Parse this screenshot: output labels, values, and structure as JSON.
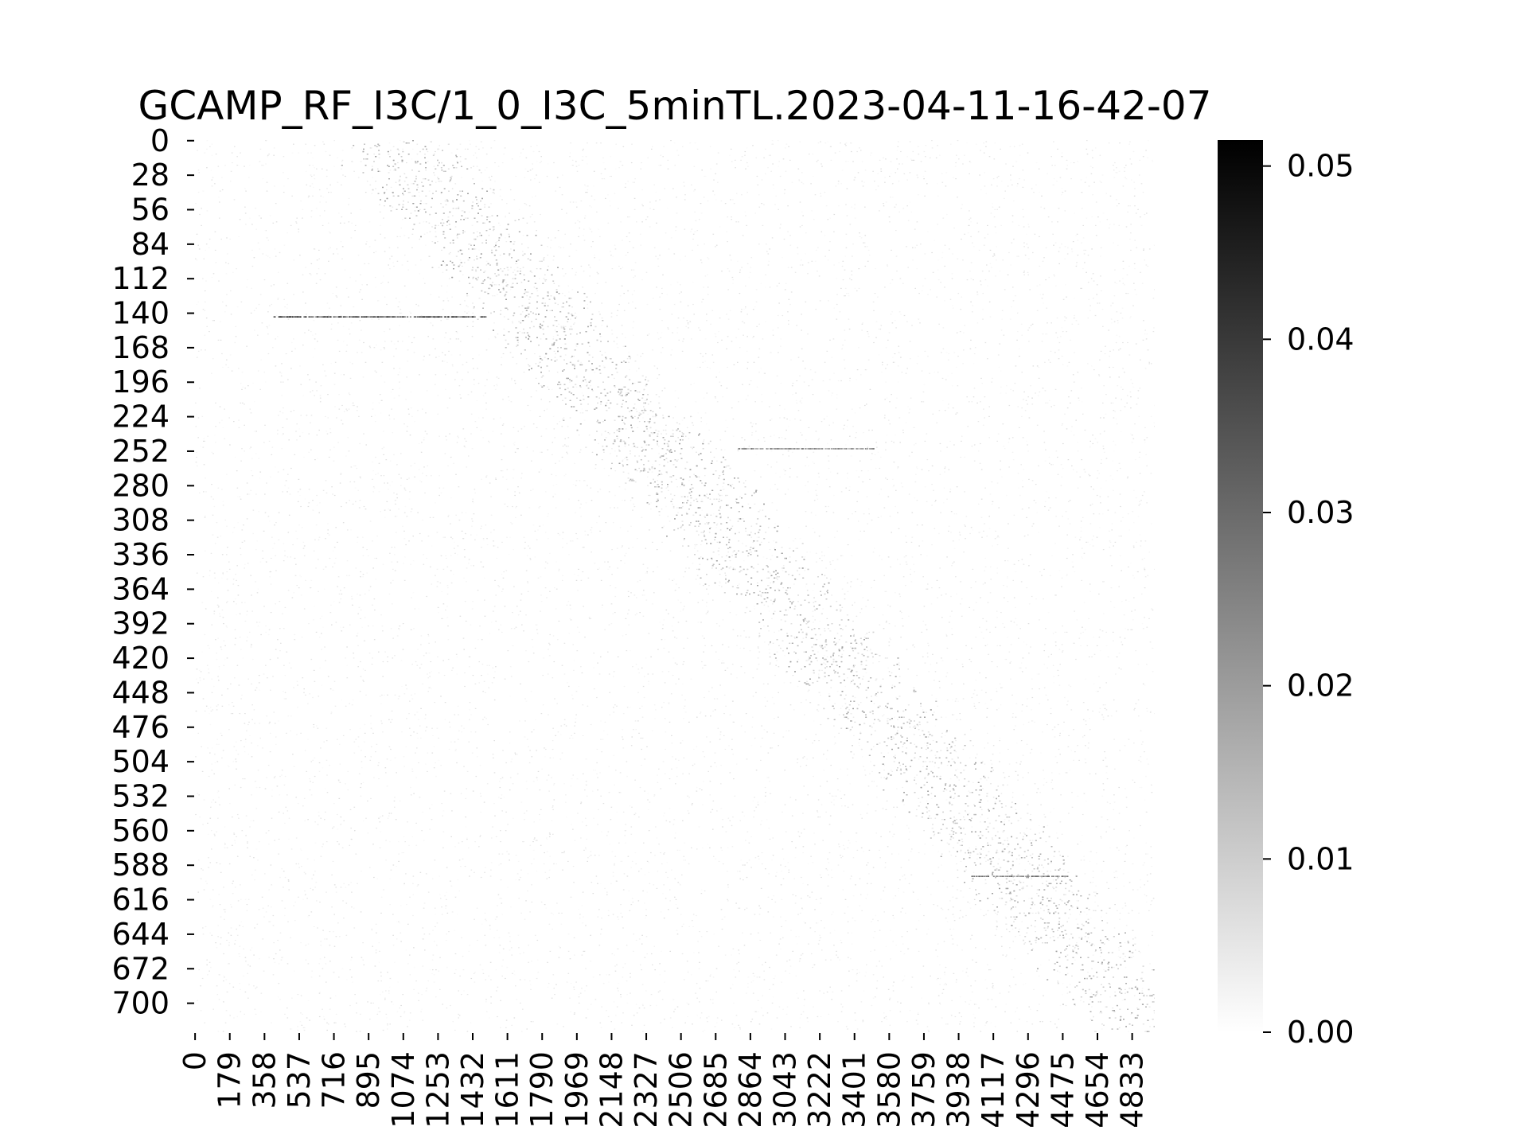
{
  "chart_data": {
    "type": "heatmap",
    "title": "GCAMP_RF_I3C/1_0_I3C_5minTL.2023-04-11-16-42-07",
    "xlabel": "",
    "ylabel": "",
    "colormap": "Greys",
    "rows": 724,
    "cols": 4950,
    "x_ticks": [
      0,
      179,
      358,
      537,
      716,
      895,
      1074,
      1253,
      1432,
      1611,
      1790,
      1969,
      2148,
      2327,
      2506,
      2685,
      2864,
      3043,
      3222,
      3401,
      3580,
      3759,
      3938,
      4117,
      4296,
      4475,
      4654,
      4833
    ],
    "y_ticks": [
      0,
      28,
      56,
      84,
      112,
      140,
      168,
      196,
      224,
      252,
      280,
      308,
      336,
      364,
      392,
      420,
      448,
      476,
      504,
      532,
      560,
      588,
      616,
      644,
      672,
      700
    ],
    "colorbar": {
      "vmin": 0.0,
      "vmax": 0.0515,
      "ticks": [
        0.0,
        0.01,
        0.02,
        0.03,
        0.04,
        0.05
      ],
      "tick_labels": [
        "0.00",
        "0.01",
        "0.02",
        "0.03",
        "0.04",
        "0.05"
      ]
    },
    "features": {
      "background_level": 0.002,
      "diagonal_band": {
        "start": [
          1000,
          0
        ],
        "end": [
          4950,
          724
        ],
        "level": 0.012
      },
      "strong_segments": [
        {
          "row": 143,
          "x_start": 400,
          "x_end": 1500,
          "level": 0.045
        },
        {
          "row": 250,
          "x_start": 2800,
          "x_end": 3500,
          "level": 0.025
        },
        {
          "row": 597,
          "x_start": 4000,
          "x_end": 4500,
          "level": 0.03
        }
      ]
    }
  }
}
